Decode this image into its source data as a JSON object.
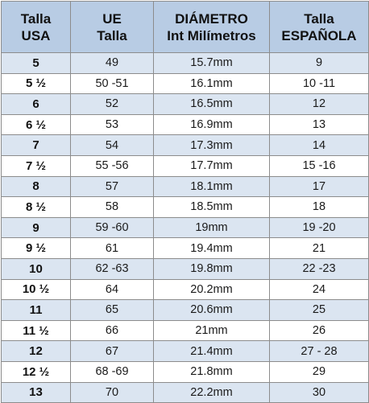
{
  "table": {
    "headers": [
      {
        "line1": "Talla",
        "line2": "USA"
      },
      {
        "line1": "UE",
        "line2": "Talla"
      },
      {
        "line1": "DIÁMETRO",
        "line2": "Int Milímetros"
      },
      {
        "line1": "Talla",
        "line2": "ESPAÑOLA"
      }
    ],
    "rows": [
      {
        "usa": "5",
        "ue": "49",
        "diametro": "15.7mm",
        "espanola": "9"
      },
      {
        "usa": "5 ½",
        "ue": "50 -51",
        "diametro": "16.1mm",
        "espanola": "10 -11"
      },
      {
        "usa": "6",
        "ue": "52",
        "diametro": "16.5mm",
        "espanola": "12"
      },
      {
        "usa": "6 ½",
        "ue": "53",
        "diametro": "16.9mm",
        "espanola": "13"
      },
      {
        "usa": "7",
        "ue": "54",
        "diametro": "17.3mm",
        "espanola": "14"
      },
      {
        "usa": "7 ½",
        "ue": "55 -56",
        "diametro": "17.7mm",
        "espanola": "15 -16"
      },
      {
        "usa": "8",
        "ue": "57",
        "diametro": "18.1mm",
        "espanola": "17"
      },
      {
        "usa": "8 ½",
        "ue": "58",
        "diametro": "18.5mm",
        "espanola": "18"
      },
      {
        "usa": "9",
        "ue": "59 -60",
        "diametro": "19mm",
        "espanola": "19 -20"
      },
      {
        "usa": "9 ½",
        "ue": "61",
        "diametro": "19.4mm",
        "espanola": "21"
      },
      {
        "usa": "10",
        "ue": "62 -63",
        "diametro": "19.8mm",
        "espanola": "22 -23"
      },
      {
        "usa": "10 ½",
        "ue": "64",
        "diametro": "20.2mm",
        "espanola": "24"
      },
      {
        "usa": "11",
        "ue": "65",
        "diametro": "20.6mm",
        "espanola": "25"
      },
      {
        "usa": "11 ½",
        "ue": "66",
        "diametro": "21mm",
        "espanola": "26"
      },
      {
        "usa": "12",
        "ue": "67",
        "diametro": "21.4mm",
        "espanola": "27 - 28"
      },
      {
        "usa": "12 ½",
        "ue": "68 -69",
        "diametro": "21.8mm",
        "espanola": "29"
      },
      {
        "usa": "13",
        "ue": "70",
        "diametro": "22.2mm",
        "espanola": "30"
      }
    ],
    "colors": {
      "header_bg": "#b8cce4",
      "alt_row_bg": "#dbe5f1",
      "plain_row_bg": "#ffffff",
      "grid_line": "#8c8c8c"
    }
  }
}
